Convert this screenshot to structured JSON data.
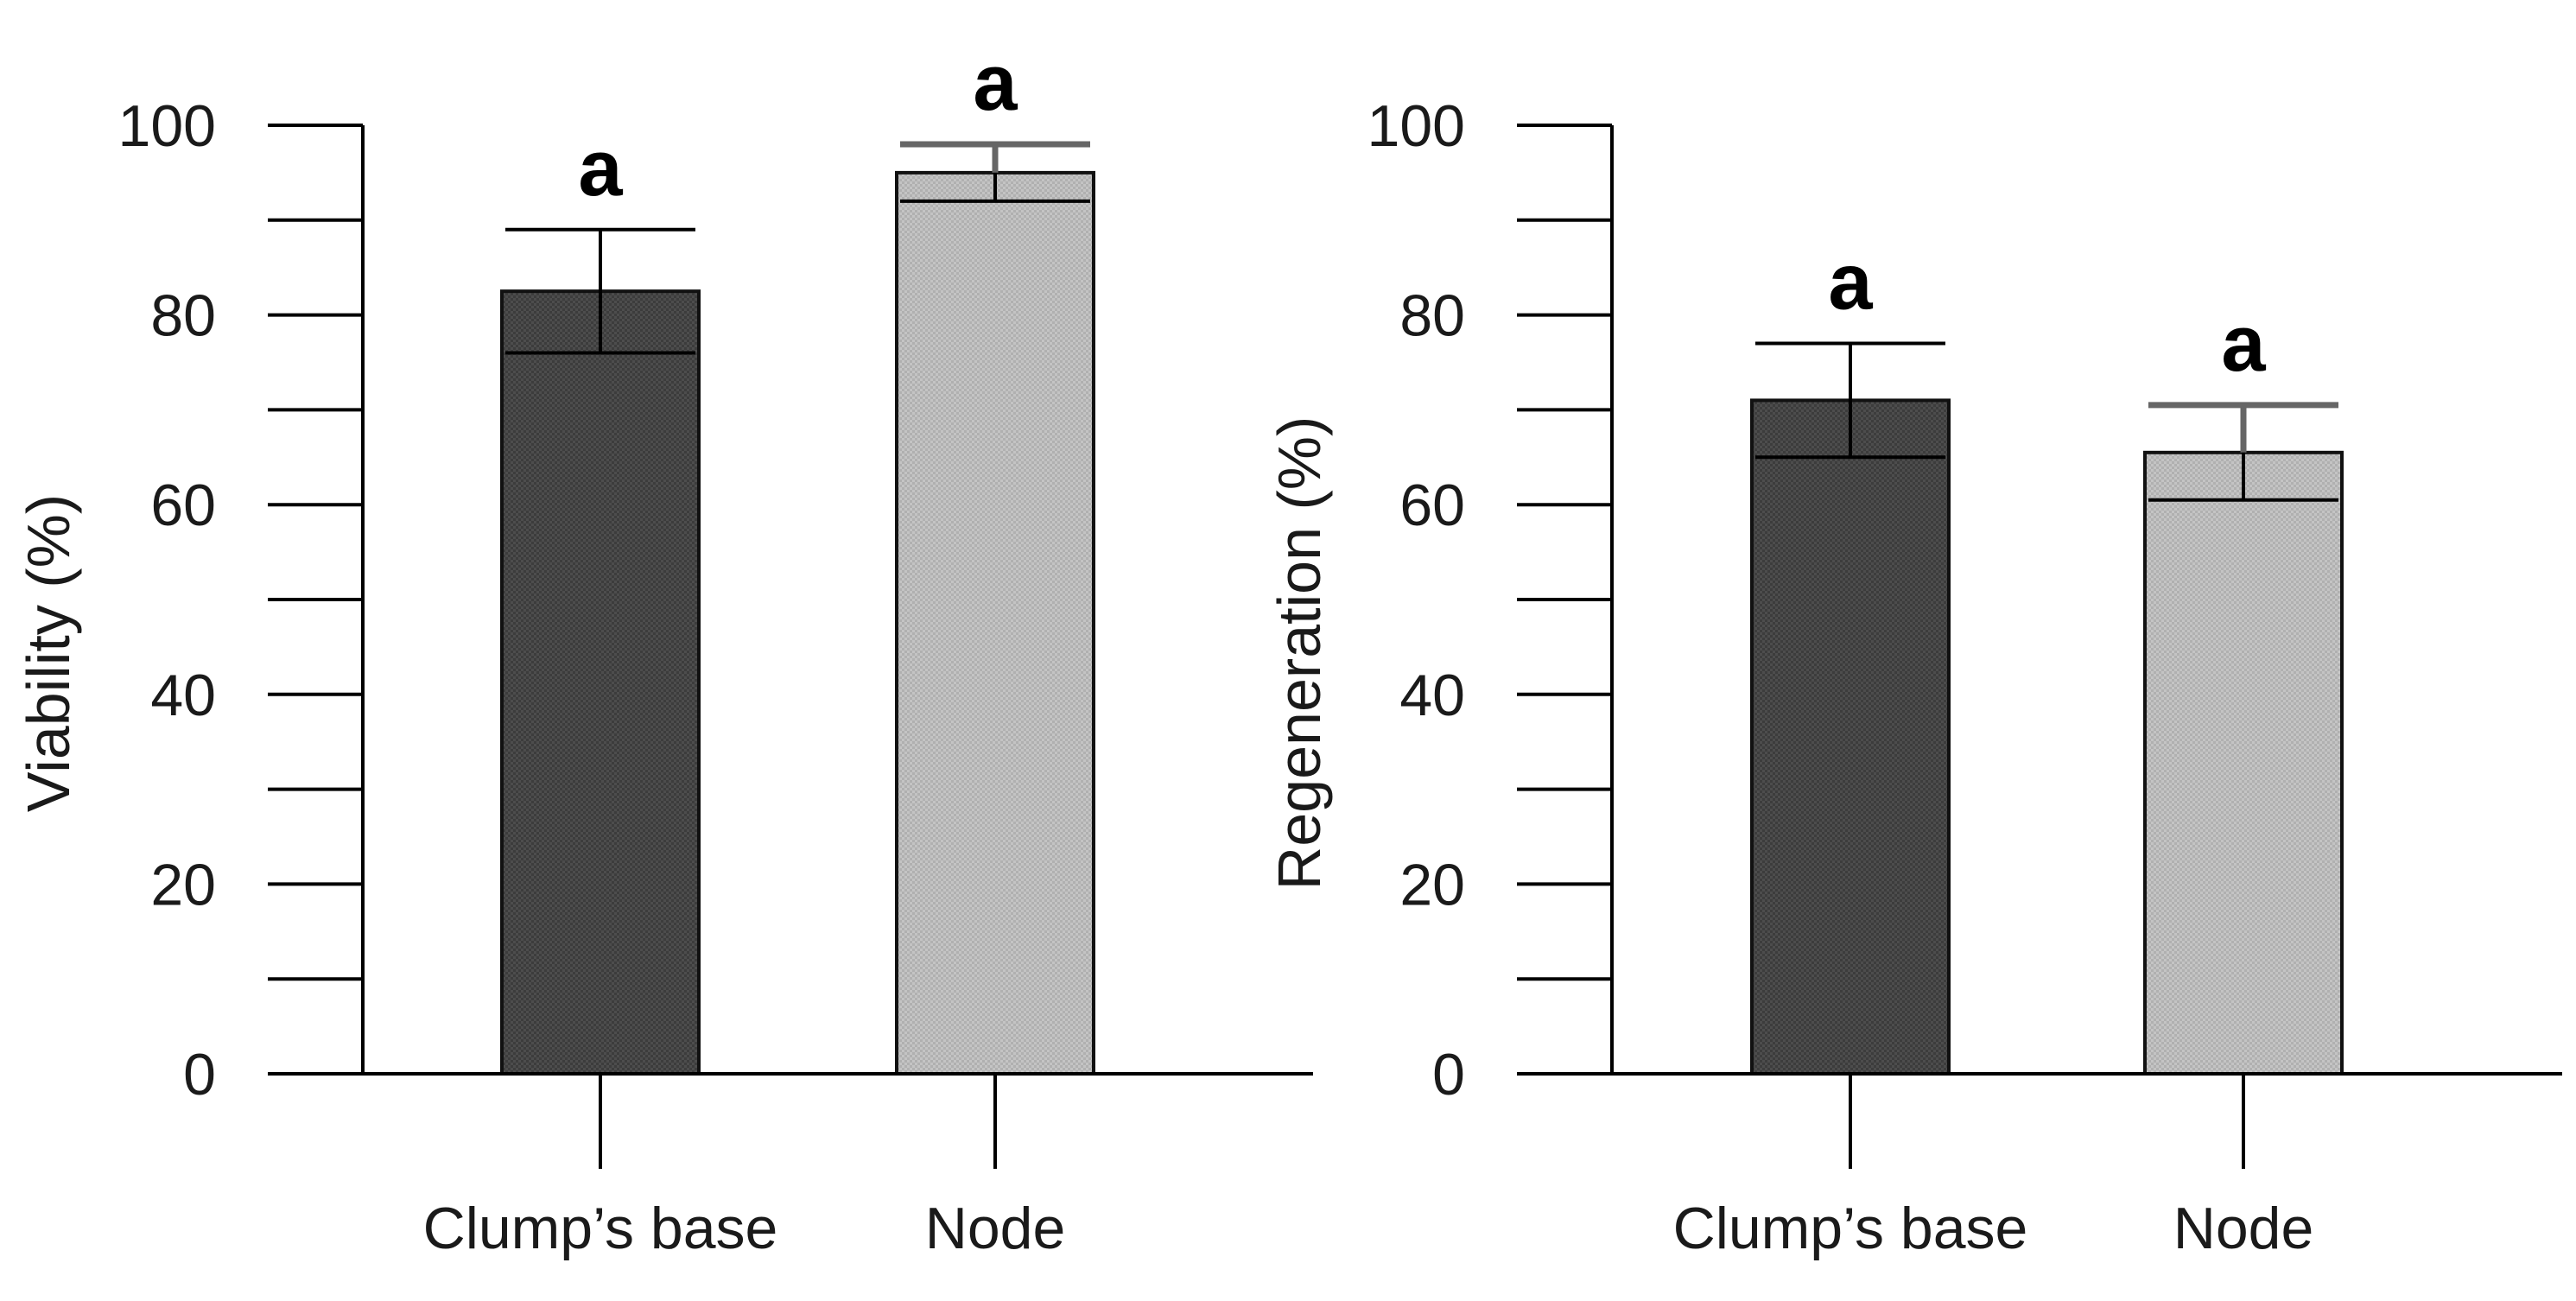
{
  "chart_data": [
    {
      "type": "bar",
      "categories": [
        "Clump’s base",
        "Node"
      ],
      "values": [
        82.5,
        95
      ],
      "errors": [
        6.5,
        3
      ],
      "annotations": [
        "a",
        "a"
      ],
      "colors": [
        "#4a4a4a",
        "#bdbdbd"
      ],
      "ylabel": "Viability (%)",
      "xlabel": "",
      "ylim": [
        0,
        100
      ],
      "yticks": [
        "0",
        "20",
        "40",
        "60",
        "80",
        "100"
      ]
    },
    {
      "type": "bar",
      "categories": [
        "Clump’s base",
        "Node"
      ],
      "values": [
        71,
        65.5
      ],
      "errors": [
        6,
        5
      ],
      "annotations": [
        "a",
        "a"
      ],
      "colors": [
        "#4a4a4a",
        "#bdbdbd"
      ],
      "ylabel": "Regeneration (%)",
      "xlabel": "",
      "ylim": [
        0,
        100
      ],
      "yticks": [
        "0",
        "20",
        "40",
        "60",
        "80",
        "100"
      ]
    }
  ]
}
